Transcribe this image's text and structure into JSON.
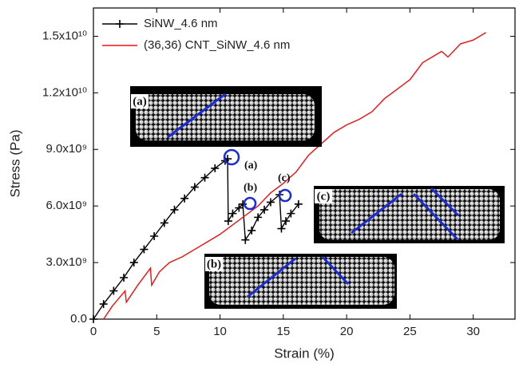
{
  "chart_data": {
    "type": "line",
    "xlabel": "Strain (%)",
    "ylabel": "Stress (Pa)",
    "xlim": [
      0,
      33.3
    ],
    "ylim": [
      0,
      16500000000
    ],
    "xticks": [
      0,
      5,
      10,
      15,
      20,
      25,
      30
    ],
    "yticks": [
      {
        "value": 0,
        "label": "0.0"
      },
      {
        "value": 3000000000,
        "label": "3.0x10⁹"
      },
      {
        "value": 6000000000,
        "label": "6.0x10⁹"
      },
      {
        "value": 9000000000,
        "label": "9.0x10⁹"
      },
      {
        "value": 12000000000,
        "label": "1.2x10¹⁰"
      },
      {
        "value": 15000000000,
        "label": "1.5x10¹⁰"
      }
    ],
    "legend": "top-left",
    "series": [
      {
        "name": "SiNW_4.6 nm",
        "color": "#000000",
        "marker": "+",
        "x": [
          0,
          0.8,
          1.6,
          2.4,
          3.2,
          4.0,
          4.8,
          5.6,
          6.4,
          7.2,
          8.0,
          8.8,
          9.6,
          10.4,
          10.6,
          10.65,
          11.0,
          11.5,
          11.8,
          12.0,
          12.5,
          13.0,
          13.5,
          14.0,
          14.7,
          14.85,
          15.2,
          15.6,
          16.2
        ],
        "values": [
          0,
          800000000,
          1500000000,
          2200000000,
          3000000000,
          3700000000,
          4400000000,
          5100000000,
          5800000000,
          6400000000,
          7000000000,
          7500000000,
          8000000000,
          8400000000,
          8500000000,
          5200000000,
          5600000000,
          5900000000,
          6100000000,
          4200000000,
          4700000000,
          5400000000,
          5800000000,
          6200000000,
          6600000000,
          4800000000,
          5200000000,
          5600000000,
          6100000000
        ]
      },
      {
        "name": "(36,36) CNT_SiNW_4.6 nm",
        "color": "#ee1111",
        "x": [
          0.8,
          1.5,
          2.5,
          2.6,
          3.5,
          4.5,
          4.6,
          5.2,
          6.0,
          7.0,
          8.0,
          9.0,
          10.0,
          11.0,
          12.0,
          13.0,
          14.0,
          15.0,
          16.0,
          17.0,
          18.0,
          19.0,
          20.0,
          21.0,
          22.0,
          23.0,
          24.0,
          25.0,
          26.0,
          27.0,
          27.5,
          28.0,
          29.0,
          30.0,
          31.0
        ],
        "values": [
          0,
          700000000,
          1500000000,
          900000000,
          1800000000,
          2700000000,
          1800000000,
          2500000000,
          3000000000,
          3300000000,
          3700000000,
          4100000000,
          4500000000,
          5000000000,
          5500000000,
          6000000000,
          6700000000,
          7200000000,
          7800000000,
          8700000000,
          9300000000,
          9900000000,
          10300000000,
          10600000000,
          11000000000,
          11700000000,
          12200000000,
          12700000000,
          13600000000,
          14000000000,
          14200000000,
          13900000000,
          14600000000,
          14800000000,
          15200000000
        ]
      }
    ],
    "annotations": [
      "(a)",
      "(b)",
      "(c)"
    ],
    "inset_labels": [
      "(a)",
      "(b)",
      "(c)"
    ]
  }
}
